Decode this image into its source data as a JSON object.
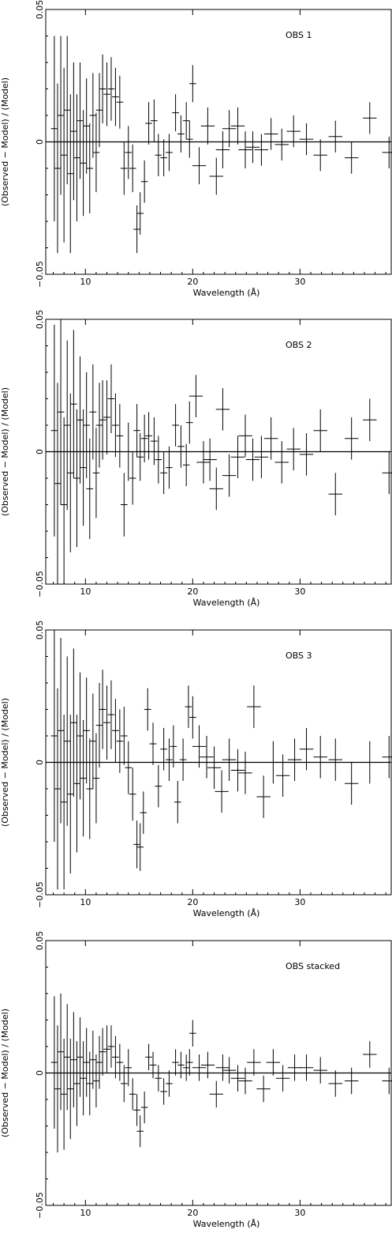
{
  "chart_data": [
    {
      "type": "scatter",
      "panel_label": "OBS 1",
      "xlabel": "Wavelength (Å)",
      "ylabel": "(Observed − Model) / (Model)",
      "xlim": [
        6.3,
        38.5
      ],
      "ylim": [
        -0.05,
        0.05
      ],
      "xticks": [
        10,
        20,
        30
      ],
      "yticks": [
        -0.05,
        0,
        0.05
      ],
      "ytick_labels": [
        "−0.05",
        "0",
        "0.05"
      ],
      "reference_line": 0,
      "points": [
        [
          7.1,
          0.005,
          0.035
        ],
        [
          7.4,
          -0.01,
          0.032
        ],
        [
          7.7,
          0.01,
          0.03
        ],
        [
          8.0,
          -0.005,
          0.033
        ],
        [
          8.3,
          0.012,
          0.028
        ],
        [
          8.6,
          -0.012,
          0.03
        ],
        [
          8.9,
          0.004,
          0.026
        ],
        [
          9.2,
          -0.006,
          0.024
        ],
        [
          9.5,
          0.008,
          0.022
        ],
        [
          9.8,
          -0.008,
          0.02
        ],
        [
          10.1,
          0.006,
          0.018
        ],
        [
          10.4,
          -0.01,
          0.017
        ],
        [
          10.7,
          0.01,
          0.016
        ],
        [
          11.0,
          -0.004,
          0.015
        ],
        [
          11.3,
          0.012,
          0.014
        ],
        [
          11.6,
          0.02,
          0.013
        ],
        [
          12.0,
          0.018,
          0.012
        ],
        [
          12.4,
          0.02,
          0.012
        ],
        [
          12.8,
          0.017,
          0.011
        ],
        [
          13.2,
          0.015,
          0.01
        ],
        [
          13.6,
          -0.01,
          0.01
        ],
        [
          14.0,
          -0.004,
          0.01
        ],
        [
          14.4,
          -0.01,
          0.009
        ],
        [
          14.8,
          -0.033,
          0.009
        ],
        [
          15.1,
          -0.027,
          0.008
        ],
        [
          15.5,
          -0.015,
          0.008
        ],
        [
          15.9,
          0.007,
          0.008
        ],
        [
          16.4,
          0.008,
          0.008
        ],
        [
          16.8,
          -0.005,
          0.008
        ],
        [
          17.3,
          -0.006,
          0.007
        ],
        [
          17.8,
          -0.004,
          0.007
        ],
        [
          18.4,
          0.011,
          0.007
        ],
        [
          18.9,
          0.003,
          0.007
        ],
        [
          19.4,
          0.008,
          0.007
        ],
        [
          19.7,
          0.001,
          0.007
        ],
        [
          20.0,
          0.022,
          0.007
        ],
        [
          20.6,
          -0.009,
          0.007
        ],
        [
          21.4,
          0.006,
          0.007
        ],
        [
          22.2,
          -0.013,
          0.007
        ],
        [
          22.8,
          -0.003,
          0.007
        ],
        [
          23.4,
          0.005,
          0.007
        ],
        [
          24.2,
          0.006,
          0.007
        ],
        [
          24.9,
          -0.003,
          0.007
        ],
        [
          25.6,
          -0.002,
          0.006
        ],
        [
          26.4,
          -0.003,
          0.006
        ],
        [
          27.3,
          0.003,
          0.006
        ],
        [
          28.3,
          -0.001,
          0.006
        ],
        [
          29.4,
          0.004,
          0.006
        ],
        [
          30.6,
          0.001,
          0.006
        ],
        [
          31.9,
          -0.005,
          0.006
        ],
        [
          33.3,
          0.002,
          0.006
        ],
        [
          34.8,
          -0.006,
          0.006
        ],
        [
          36.5,
          0.009,
          0.006
        ],
        [
          38.3,
          -0.004,
          0.006
        ]
      ]
    },
    {
      "type": "scatter",
      "panel_label": "OBS 2",
      "xlabel": "Wavelength (Å)",
      "ylabel": "(Observed − Model) / (Model)",
      "xlim": [
        6.3,
        38.5
      ],
      "ylim": [
        -0.05,
        0.05
      ],
      "xticks": [
        10,
        20,
        30
      ],
      "yticks": [
        -0.05,
        0,
        0.05
      ],
      "ytick_labels": [
        "−0.05",
        "0",
        "0.05"
      ],
      "reference_line": 0,
      "points": [
        [
          7.1,
          0.008,
          0.04
        ],
        [
          7.4,
          -0.012,
          0.038
        ],
        [
          7.7,
          0.015,
          0.035
        ],
        [
          8.0,
          -0.02,
          0.033
        ],
        [
          8.3,
          0.01,
          0.032
        ],
        [
          8.6,
          -0.008,
          0.03
        ],
        [
          8.9,
          0.018,
          0.028
        ],
        [
          9.2,
          -0.01,
          0.026
        ],
        [
          9.5,
          0.012,
          0.024
        ],
        [
          9.8,
          -0.006,
          0.022
        ],
        [
          10.1,
          0.01,
          0.02
        ],
        [
          10.4,
          -0.014,
          0.019
        ],
        [
          10.7,
          0.015,
          0.018
        ],
        [
          11.0,
          -0.008,
          0.017
        ],
        [
          11.3,
          0.01,
          0.016
        ],
        [
          11.6,
          0.012,
          0.015
        ],
        [
          12.0,
          0.013,
          0.014
        ],
        [
          12.4,
          0.02,
          0.013
        ],
        [
          12.8,
          0.01,
          0.012
        ],
        [
          13.2,
          0.006,
          0.012
        ],
        [
          13.6,
          -0.02,
          0.012
        ],
        [
          14.0,
          0.0,
          0.011
        ],
        [
          14.4,
          -0.01,
          0.01
        ],
        [
          14.8,
          0.008,
          0.01
        ],
        [
          15.1,
          -0.002,
          0.009
        ],
        [
          15.5,
          0.005,
          0.009
        ],
        [
          15.9,
          0.006,
          0.009
        ],
        [
          16.4,
          0.004,
          0.009
        ],
        [
          16.8,
          -0.003,
          0.009
        ],
        [
          17.3,
          -0.008,
          0.008
        ],
        [
          17.8,
          -0.006,
          0.008
        ],
        [
          18.4,
          0.01,
          0.008
        ],
        [
          18.9,
          0.002,
          0.008
        ],
        [
          19.4,
          -0.005,
          0.008
        ],
        [
          19.7,
          0.011,
          0.008
        ],
        [
          20.3,
          0.021,
          0.008
        ],
        [
          21.0,
          -0.004,
          0.008
        ],
        [
          21.6,
          -0.003,
          0.008
        ],
        [
          22.2,
          -0.014,
          0.008
        ],
        [
          22.8,
          0.016,
          0.008
        ],
        [
          23.4,
          -0.009,
          0.008
        ],
        [
          24.2,
          -0.002,
          0.008
        ],
        [
          24.9,
          0.006,
          0.008
        ],
        [
          25.6,
          -0.003,
          0.008
        ],
        [
          26.4,
          -0.002,
          0.008
        ],
        [
          27.3,
          0.005,
          0.008
        ],
        [
          28.3,
          -0.004,
          0.008
        ],
        [
          29.4,
          0.001,
          0.008
        ],
        [
          30.6,
          -0.001,
          0.008
        ],
        [
          31.9,
          0.008,
          0.008
        ],
        [
          33.3,
          -0.016,
          0.008
        ],
        [
          34.8,
          0.005,
          0.008
        ],
        [
          36.5,
          0.012,
          0.008
        ],
        [
          38.3,
          -0.008,
          0.008
        ]
      ]
    },
    {
      "type": "scatter",
      "panel_label": "OBS 3",
      "xlabel": "Wavelength (Å)",
      "ylabel": "(Observed − Model) / (Model)",
      "xlim": [
        6.3,
        38.5
      ],
      "ylim": [
        -0.05,
        0.05
      ],
      "xticks": [
        10,
        20,
        30
      ],
      "yticks": [
        -0.05,
        0,
        0.05
      ],
      "ytick_labels": [
        "−0.05",
        "0",
        "0.05"
      ],
      "reference_line": 0,
      "points": [
        [
          7.1,
          0.01,
          0.04
        ],
        [
          7.4,
          -0.01,
          0.038
        ],
        [
          7.7,
          0.012,
          0.035
        ],
        [
          8.0,
          -0.015,
          0.033
        ],
        [
          8.3,
          0.008,
          0.032
        ],
        [
          8.6,
          -0.012,
          0.03
        ],
        [
          8.9,
          0.015,
          0.028
        ],
        [
          9.2,
          -0.008,
          0.026
        ],
        [
          9.5,
          0.01,
          0.024
        ],
        [
          9.8,
          -0.006,
          0.022
        ],
        [
          10.1,
          0.012,
          0.02
        ],
        [
          10.4,
          -0.01,
          0.019
        ],
        [
          10.7,
          0.008,
          0.018
        ],
        [
          11.0,
          -0.006,
          0.017
        ],
        [
          11.3,
          0.014,
          0.016
        ],
        [
          11.6,
          0.02,
          0.015
        ],
        [
          12.0,
          0.015,
          0.014
        ],
        [
          12.4,
          0.018,
          0.013
        ],
        [
          12.8,
          0.012,
          0.012
        ],
        [
          13.2,
          0.008,
          0.012
        ],
        [
          13.6,
          0.01,
          0.011
        ],
        [
          14.0,
          -0.002,
          0.01
        ],
        [
          14.4,
          -0.012,
          0.01
        ],
        [
          14.8,
          -0.031,
          0.009
        ],
        [
          15.1,
          -0.032,
          0.009
        ],
        [
          15.4,
          -0.019,
          0.008
        ],
        [
          15.8,
          0.02,
          0.008
        ],
        [
          16.3,
          0.007,
          0.008
        ],
        [
          16.8,
          -0.009,
          0.008
        ],
        [
          17.3,
          0.005,
          0.008
        ],
        [
          17.8,
          0.001,
          0.008
        ],
        [
          18.2,
          0.006,
          0.008
        ],
        [
          18.6,
          -0.015,
          0.008
        ],
        [
          19.1,
          0.001,
          0.008
        ],
        [
          19.6,
          0.021,
          0.008
        ],
        [
          20.0,
          0.017,
          0.008
        ],
        [
          20.6,
          0.006,
          0.008
        ],
        [
          21.3,
          0.002,
          0.008
        ],
        [
          22.0,
          -0.002,
          0.008
        ],
        [
          22.7,
          -0.011,
          0.008
        ],
        [
          23.4,
          0.001,
          0.008
        ],
        [
          24.2,
          -0.003,
          0.008
        ],
        [
          24.9,
          -0.004,
          0.008
        ],
        [
          25.7,
          0.021,
          0.008
        ],
        [
          26.6,
          -0.013,
          0.008
        ],
        [
          27.5,
          0.0,
          0.008
        ],
        [
          28.4,
          -0.005,
          0.008
        ],
        [
          29.5,
          0.001,
          0.008
        ],
        [
          30.6,
          0.005,
          0.008
        ],
        [
          31.9,
          0.002,
          0.008
        ],
        [
          33.3,
          0.001,
          0.008
        ],
        [
          34.8,
          -0.008,
          0.008
        ],
        [
          36.5,
          0.0,
          0.008
        ],
        [
          38.3,
          0.002,
          0.008
        ]
      ]
    },
    {
      "type": "scatter",
      "panel_label": "OBS stacked",
      "xlabel": "Wavelength (Å)",
      "ylabel": "(Observed − Model) / (Model)",
      "xlim": [
        6.3,
        38.5
      ],
      "ylim": [
        -0.05,
        0.05
      ],
      "xticks": [
        10,
        20,
        30
      ],
      "yticks": [
        -0.05,
        0,
        0.05
      ],
      "ytick_labels": [
        "−0.05",
        "0",
        "0.05"
      ],
      "reference_line": 0,
      "points": [
        [
          7.1,
          0.004,
          0.025
        ],
        [
          7.4,
          -0.006,
          0.024
        ],
        [
          7.7,
          0.008,
          0.022
        ],
        [
          8.0,
          -0.008,
          0.021
        ],
        [
          8.3,
          0.006,
          0.02
        ],
        [
          8.6,
          -0.006,
          0.019
        ],
        [
          8.9,
          0.005,
          0.018
        ],
        [
          9.2,
          -0.004,
          0.016
        ],
        [
          9.5,
          0.006,
          0.015
        ],
        [
          9.8,
          -0.002,
          0.014
        ],
        [
          10.1,
          0.004,
          0.013
        ],
        [
          10.4,
          -0.004,
          0.012
        ],
        [
          10.7,
          0.005,
          0.011
        ],
        [
          11.0,
          -0.003,
          0.01
        ],
        [
          11.3,
          0.004,
          0.01
        ],
        [
          11.6,
          0.008,
          0.009
        ],
        [
          12.0,
          0.009,
          0.009
        ],
        [
          12.4,
          0.01,
          0.008
        ],
        [
          12.8,
          0.006,
          0.008
        ],
        [
          13.2,
          0.004,
          0.007
        ],
        [
          13.6,
          -0.004,
          0.007
        ],
        [
          14.0,
          0.002,
          0.007
        ],
        [
          14.4,
          -0.008,
          0.006
        ],
        [
          14.8,
          -0.014,
          0.006
        ],
        [
          15.1,
          -0.022,
          0.006
        ],
        [
          15.5,
          -0.013,
          0.006
        ],
        [
          15.9,
          0.006,
          0.005
        ],
        [
          16.3,
          0.003,
          0.005
        ],
        [
          16.8,
          -0.002,
          0.005
        ],
        [
          17.3,
          -0.007,
          0.005
        ],
        [
          17.8,
          -0.004,
          0.005
        ],
        [
          18.4,
          0.004,
          0.005
        ],
        [
          18.9,
          0.003,
          0.005
        ],
        [
          19.4,
          0.002,
          0.005
        ],
        [
          19.7,
          0.004,
          0.005
        ],
        [
          20.0,
          0.015,
          0.005
        ],
        [
          20.6,
          0.002,
          0.005
        ],
        [
          21.4,
          0.003,
          0.005
        ],
        [
          22.2,
          -0.008,
          0.005
        ],
        [
          22.8,
          0.002,
          0.005
        ],
        [
          23.4,
          0.001,
          0.005
        ],
        [
          24.2,
          -0.002,
          0.005
        ],
        [
          24.9,
          -0.003,
          0.005
        ],
        [
          25.7,
          0.004,
          0.005
        ],
        [
          26.6,
          -0.006,
          0.005
        ],
        [
          27.5,
          0.004,
          0.005
        ],
        [
          28.4,
          -0.002,
          0.005
        ],
        [
          29.5,
          0.002,
          0.005
        ],
        [
          30.6,
          0.002,
          0.005
        ],
        [
          31.9,
          0.001,
          0.005
        ],
        [
          33.3,
          -0.004,
          0.005
        ],
        [
          34.8,
          -0.003,
          0.005
        ],
        [
          36.5,
          0.007,
          0.005
        ],
        [
          38.3,
          -0.003,
          0.005
        ]
      ]
    }
  ]
}
